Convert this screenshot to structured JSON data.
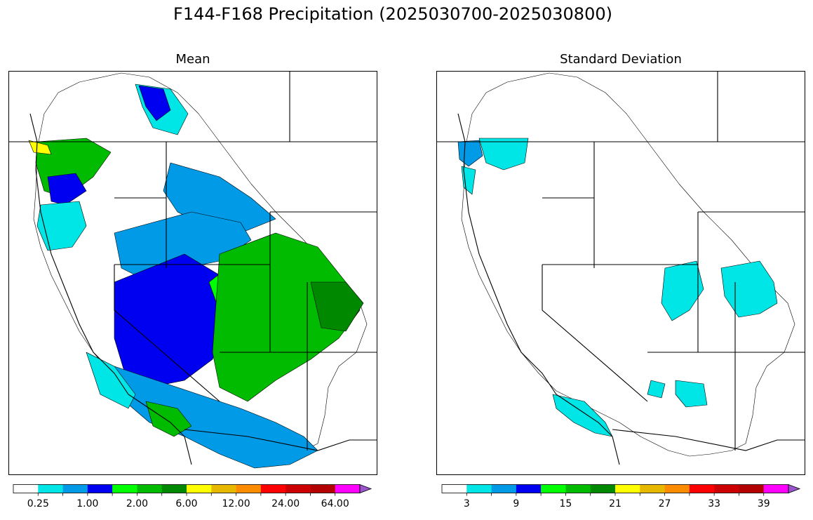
{
  "title": "F144-F168 Precipitation (2025030700-2025030800)",
  "colors": {
    "white": "#ffffff",
    "cyan": "#00e6e6",
    "lightblue": "#009ae6",
    "blue": "#0000f0",
    "lime": "#00ff00",
    "green": "#00bb00",
    "darkgreen": "#008800",
    "yellow": "#ffff00",
    "gold": "#e6b800",
    "orange": "#ff8c00",
    "red": "#ff0000",
    "darkred": "#cc0000",
    "maroon": "#b30000",
    "magenta": "#ff00ff",
    "purple": "#9955cc"
  },
  "panels": [
    {
      "id": "mean",
      "title": "Mean",
      "colorbar": {
        "colors": [
          "#ffffff",
          "#00e6e6",
          "#009ae6",
          "#0000f0",
          "#00ff00",
          "#00bb00",
          "#008800",
          "#ffff00",
          "#e6b800",
          "#ff8c00",
          "#ff0000",
          "#cc0000",
          "#b30000",
          "#ff00ff",
          "#9955cc"
        ],
        "extend": "max",
        "ticks": [
          {
            "label": "0.25",
            "boundary": 1
          },
          {
            "label": "1.00",
            "boundary": 3
          },
          {
            "label": "2.00",
            "boundary": 5
          },
          {
            "label": "6.00",
            "boundary": 7
          },
          {
            "label": "12.00",
            "boundary": 9
          },
          {
            "label": "24.00",
            "boundary": 11
          },
          {
            "label": "64.00",
            "boundary": 13
          }
        ]
      }
    },
    {
      "id": "stddev",
      "title": "Standard Deviation",
      "colorbar": {
        "colors": [
          "#ffffff",
          "#00e6e6",
          "#009ae6",
          "#0000f0",
          "#00ff00",
          "#00bb00",
          "#008800",
          "#ffff00",
          "#e6b800",
          "#ff8c00",
          "#ff0000",
          "#cc0000",
          "#b30000",
          "#ff00ff",
          "#9955cc"
        ],
        "extend": "max",
        "ticks": [
          {
            "label": "3",
            "boundary": 1
          },
          {
            "label": "9",
            "boundary": 3
          },
          {
            "label": "15",
            "boundary": 5
          },
          {
            "label": "21",
            "boundary": 7
          },
          {
            "label": "27",
            "boundary": 9
          },
          {
            "label": "33",
            "boundary": 11
          },
          {
            "label": "39",
            "boundary": 13
          }
        ]
      }
    }
  ]
}
